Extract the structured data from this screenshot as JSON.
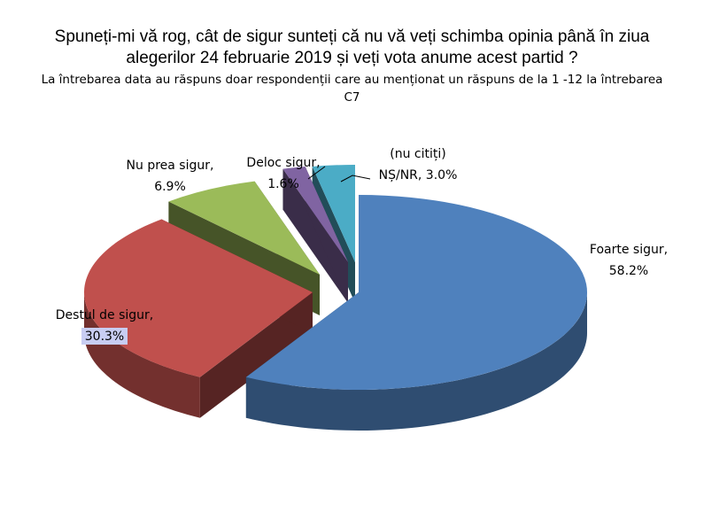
{
  "title": "Spuneți-mi vă rog, cât de sigur sunteți că nu vă veți schimba opinia până în ziua alegerilor 24 februarie 2019 și veți vota anume acest partid ?",
  "subtitle": "La întrebarea data au răspuns doar respondenții care au menționat un răspuns de la 1 -12 la întrebarea C7",
  "chart_data": {
    "type": "pie",
    "three_d": true,
    "exploded": true,
    "slices": [
      {
        "name": "Foarte sigur,",
        "value": 58.2,
        "label": "58.2%",
        "color": "#4f81bd"
      },
      {
        "name": "Destul de sigur,",
        "value": 30.3,
        "label": "30.3%",
        "color": "#c0504d"
      },
      {
        "name": "Nu prea sigur,",
        "value": 6.9,
        "label": "6.9%",
        "color": "#9bbb59"
      },
      {
        "name": "Deloc sigur,",
        "value": 1.6,
        "label": "1.6%",
        "color": "#8064a2"
      },
      {
        "name": "NȘ/NR,",
        "note": "(nu citiți)",
        "value": 3.0,
        "label": "3.0%",
        "color": "#4bacc6"
      }
    ]
  }
}
